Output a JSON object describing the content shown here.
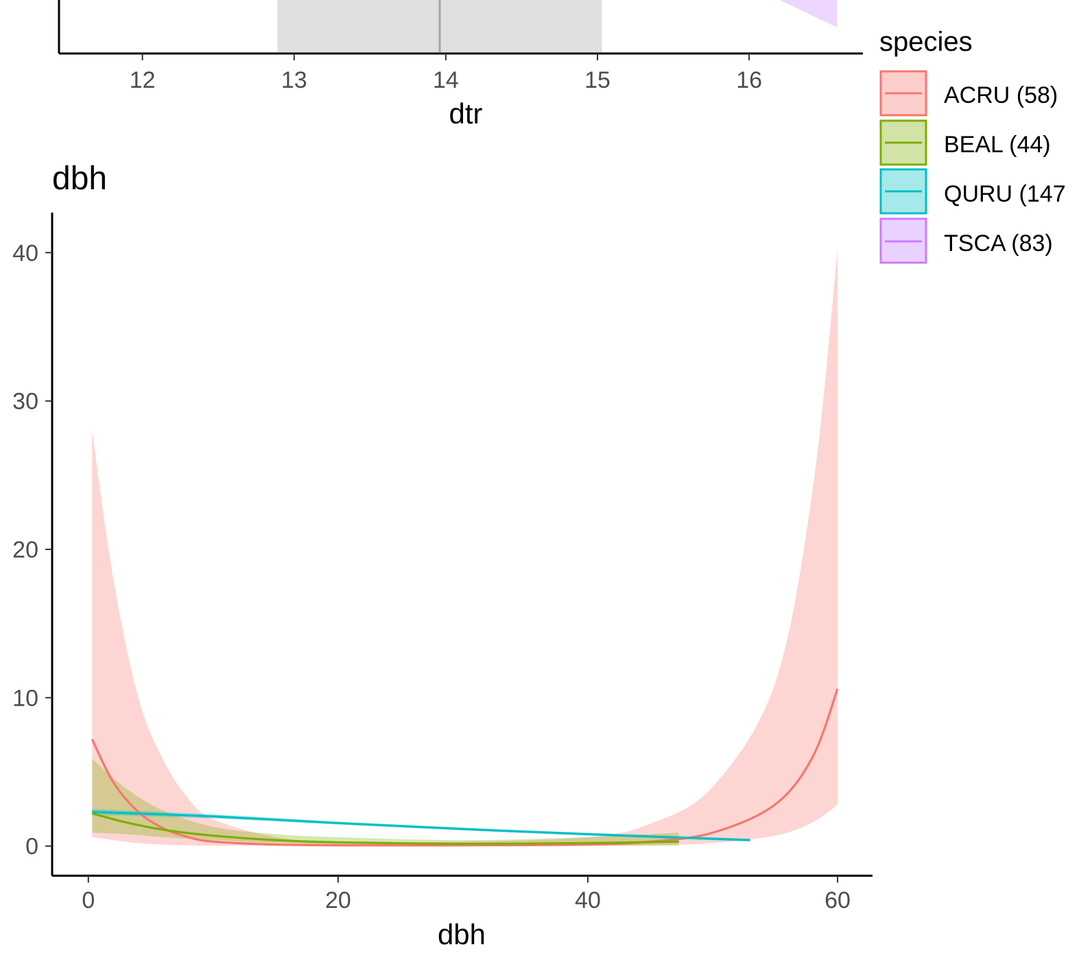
{
  "colors": {
    "ACRU": "#F8766D",
    "BEAL": "#7CAE00",
    "QURU": "#00BFC4",
    "TSCA": "#C77CFF",
    "rug_band": "#E0E0E0",
    "rug_line": "#A6A6A6"
  },
  "legend": {
    "title": "species",
    "items": [
      {
        "key": "ACRU",
        "label": "ACRU (58)"
      },
      {
        "key": "BEAL",
        "label": "BEAL (44)"
      },
      {
        "key": "QURU",
        "label": "QURU (147"
      },
      {
        "key": "TSCA",
        "label": "TSCA (83)"
      }
    ],
    "placement": "right"
  },
  "chart_data": [
    {
      "type": "line",
      "panel": "top (partially visible)",
      "title": "",
      "xlabel": "dtr",
      "ylabel": "",
      "x_ticks": [
        12,
        13,
        14,
        15,
        16
      ],
      "xlim": [
        11.45,
        16.75
      ],
      "shaded_interval": {
        "x_start": 12.89,
        "x_end": 15.03,
        "x_median": 13.96
      },
      "visible_series": [
        {
          "species": "TSCA",
          "ribbon_edge_x": [
            16.2,
            16.58
          ]
        }
      ]
    },
    {
      "type": "line",
      "panel": "bottom",
      "title": "dbh",
      "xlabel": "dbh",
      "ylabel": "",
      "x_ticks": [
        0,
        20,
        40,
        60
      ],
      "y_ticks": [
        0,
        10,
        20,
        30,
        40
      ],
      "xlim": [
        -2.9,
        62.8
      ],
      "ylim": [
        -2.0,
        42.7
      ],
      "grid": false,
      "series": [
        {
          "name": "ACRU (58)",
          "key": "ACRU",
          "x": [
            0.3,
            2,
            4,
            6,
            8,
            10,
            15,
            20,
            30,
            40,
            45,
            50,
            55,
            58,
            60
          ],
          "y": [
            7.2,
            4.3,
            2.3,
            1.2,
            0.6,
            0.3,
            0.1,
            0.05,
            0.05,
            0.1,
            0.3,
            0.9,
            2.8,
            6.0,
            10.6
          ],
          "lower": [
            0.6,
            0.4,
            0.2,
            0.1,
            0.05,
            0.02,
            0.01,
            0.01,
            0.01,
            0.02,
            0.05,
            0.2,
            0.7,
            1.6,
            2.8
          ],
          "upper": [
            28.0,
            18.0,
            10.0,
            5.8,
            3.2,
            1.8,
            0.6,
            0.3,
            0.3,
            0.6,
            1.5,
            4.0,
            11.0,
            24.0,
            40.2
          ]
        },
        {
          "name": "BEAL (44)",
          "key": "BEAL",
          "x": [
            0.3,
            3,
            6,
            10,
            15,
            20,
            30,
            40,
            47.3
          ],
          "y": [
            2.2,
            1.6,
            1.1,
            0.7,
            0.4,
            0.25,
            0.15,
            0.2,
            0.3
          ],
          "lower": [
            0.9,
            0.8,
            0.6,
            0.4,
            0.2,
            0.1,
            0.05,
            0.03,
            0.03
          ],
          "upper": [
            5.9,
            3.9,
            2.4,
            1.3,
            0.8,
            0.6,
            0.4,
            0.6,
            0.9
          ]
        },
        {
          "name": "QURU (147",
          "key": "QURU",
          "x": [
            0.3,
            10,
            20,
            30,
            40,
            53
          ],
          "y": [
            2.3,
            2.0,
            1.55,
            1.15,
            0.8,
            0.4
          ],
          "lower": [
            2.1,
            1.85,
            1.45,
            1.05,
            0.7,
            0.3
          ],
          "upper": [
            2.5,
            2.15,
            1.65,
            1.25,
            0.9,
            0.5
          ]
        }
      ]
    }
  ]
}
